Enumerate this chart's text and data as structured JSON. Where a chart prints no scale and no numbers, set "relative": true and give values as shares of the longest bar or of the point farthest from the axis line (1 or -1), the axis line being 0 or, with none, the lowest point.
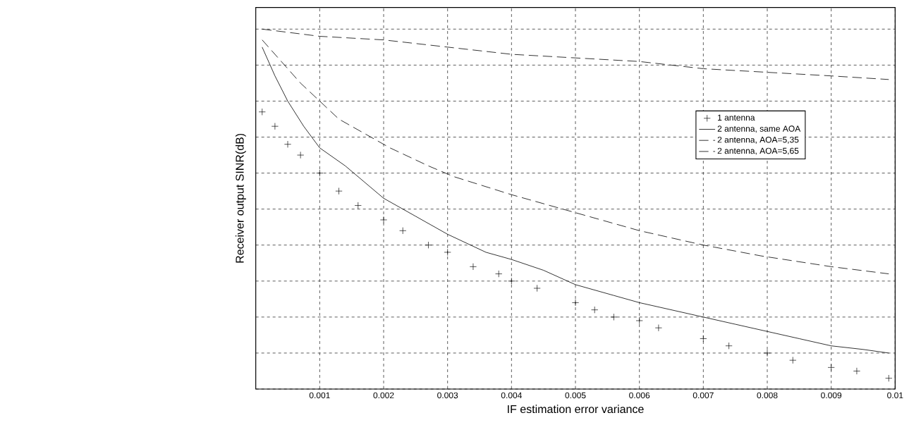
{
  "chart_data": {
    "type": "line",
    "relative": true,
    "xlabel": "IF estimation error variance",
    "ylabel": "Receiver output SINR(dB)",
    "xlim": [
      0,
      0.01
    ],
    "xticks": [
      0.001,
      0.002,
      0.003,
      0.004,
      0.005,
      0.006,
      0.007,
      0.008,
      0.009,
      0.01
    ],
    "grid": true,
    "legend": "top right",
    "series": [
      {
        "name": "1 antenna",
        "type": "scatter",
        "marker": "cross",
        "color": "#000000",
        "x": [
          0.0001,
          0.0003,
          0.0005,
          0.0007,
          0.001,
          0.0013,
          0.0016,
          0.002,
          0.0023,
          0.0027,
          0.003,
          0.0034,
          0.0038,
          0.004,
          0.0044,
          0.005,
          0.0053,
          0.0056,
          0.006,
          0.0063,
          0.007,
          0.0074,
          0.008,
          0.0084,
          0.009,
          0.0094,
          0.0099
        ],
        "values": [
          0.77,
          0.73,
          0.68,
          0.65,
          0.6,
          0.55,
          0.51,
          0.47,
          0.44,
          0.4,
          0.38,
          0.34,
          0.32,
          0.3,
          0.28,
          0.24,
          0.22,
          0.2,
          0.19,
          0.17,
          0.14,
          0.12,
          0.1,
          0.08,
          0.06,
          0.05,
          0.03
        ]
      },
      {
        "name": "2 antenna, same AOA",
        "line_style": "solid",
        "color": "#000000",
        "x": [
          0.0001,
          0.0003,
          0.0005,
          0.00075,
          0.001,
          0.0014,
          0.0018,
          0.002,
          0.0025,
          0.003,
          0.0036,
          0.004,
          0.0045,
          0.005,
          0.0056,
          0.006,
          0.0065,
          0.007,
          0.0075,
          0.008,
          0.0085,
          0.009,
          0.0095,
          0.0099
        ],
        "values": [
          0.95,
          0.87,
          0.8,
          0.73,
          0.67,
          0.62,
          0.56,
          0.53,
          0.48,
          0.43,
          0.38,
          0.36,
          0.33,
          0.29,
          0.26,
          0.24,
          0.22,
          0.2,
          0.18,
          0.16,
          0.14,
          0.12,
          0.11,
          0.1
        ]
      },
      {
        "name": "2 antenna, AOA=5,35",
        "line_style": "dashed",
        "color": "#000000",
        "x": [
          0.0001,
          0.001,
          0.002,
          0.003,
          0.004,
          0.005,
          0.006,
          0.007,
          0.008,
          0.009,
          0.0099
        ],
        "values": [
          1.0,
          0.98,
          0.97,
          0.95,
          0.93,
          0.92,
          0.91,
          0.89,
          0.88,
          0.87,
          0.86
        ]
      },
      {
        "name": "2 antenna, AOA=5,65",
        "line_style": "dashed",
        "color": "#000000",
        "x": [
          0.0001,
          0.00025,
          0.0007,
          0.001,
          0.0013,
          0.0017,
          0.0021,
          0.0027,
          0.0031,
          0.004,
          0.005,
          0.006,
          0.007,
          0.0079,
          0.009,
          0.0099
        ],
        "values": [
          0.97,
          0.94,
          0.85,
          0.8,
          0.75,
          0.71,
          0.67,
          0.62,
          0.59,
          0.54,
          0.49,
          0.44,
          0.4,
          0.37,
          0.34,
          0.32
        ]
      }
    ]
  }
}
